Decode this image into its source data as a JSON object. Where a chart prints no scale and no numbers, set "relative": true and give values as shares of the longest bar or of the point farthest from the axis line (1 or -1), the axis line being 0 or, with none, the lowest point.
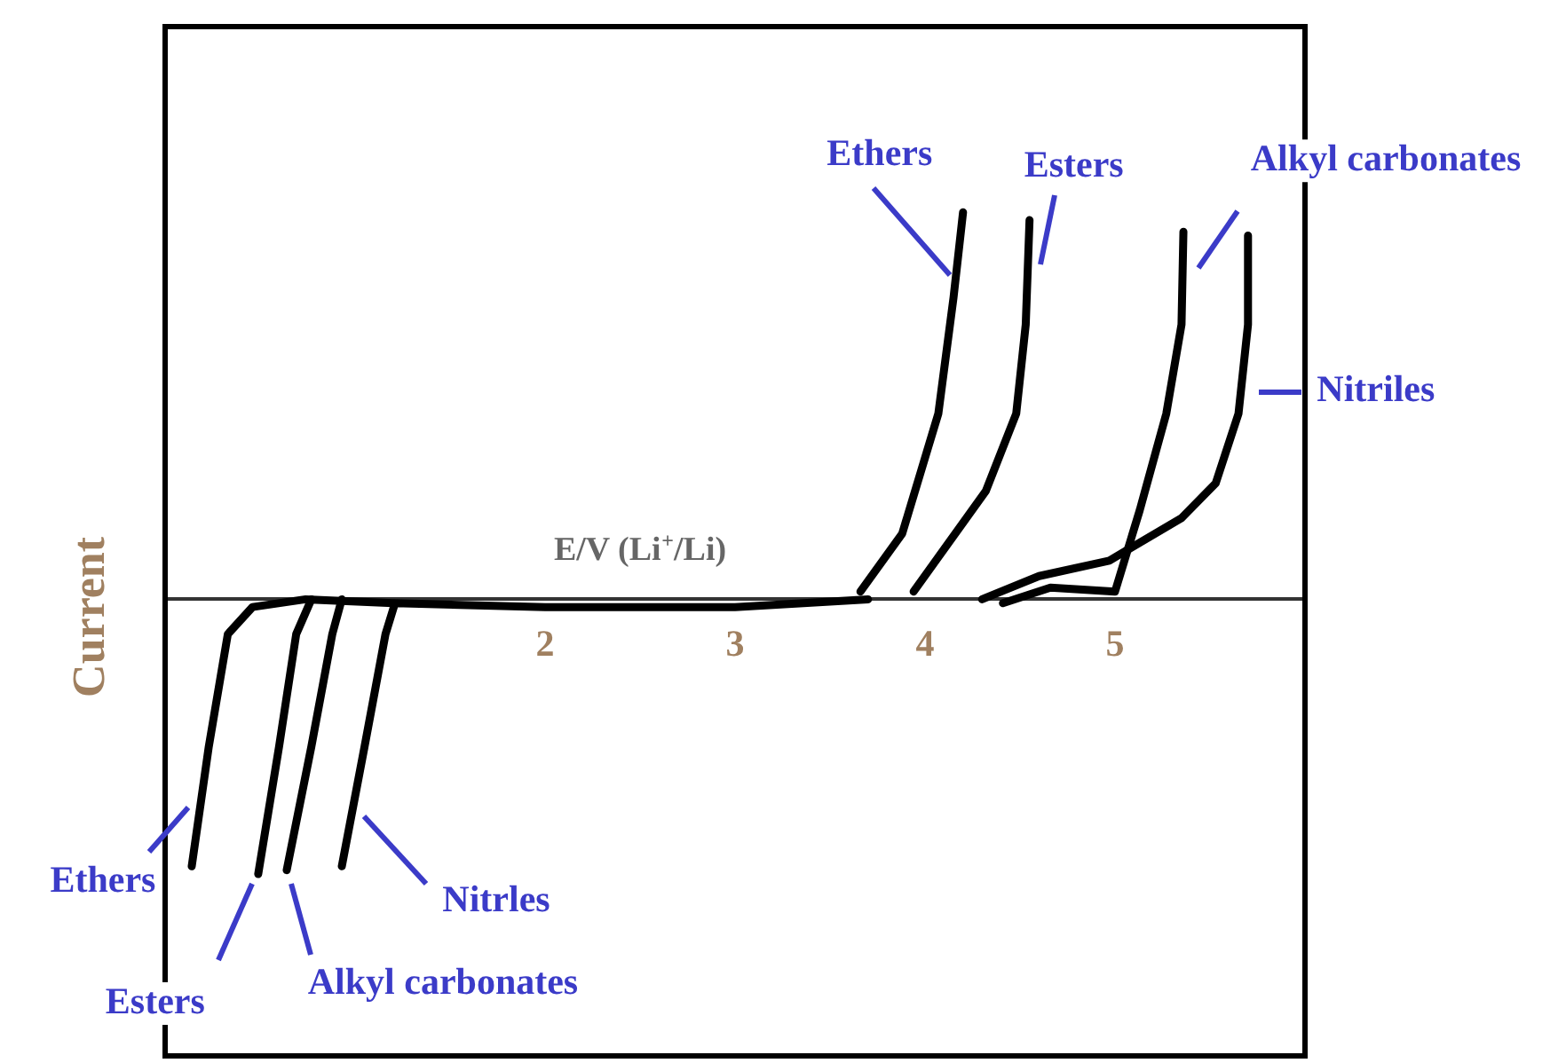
{
  "chart_data": {
    "type": "line",
    "relative": true,
    "xlabel": "E/V (Li$^{+}$/Li)",
    "ylabel": "Current",
    "xlim": [
      0,
      6
    ],
    "xticks": [
      2,
      3,
      4,
      5
    ],
    "grid": false,
    "legend": false,
    "marker": "none",
    "line_style": "solid",
    "series": [
      {
        "name": "Ethers",
        "color": "#000000",
        "x": [
          3.66,
          3.88,
          4.07,
          4.15,
          4.2
        ],
        "values": [
          0.02,
          0.17,
          0.48,
          0.78,
          1
        ]
      },
      {
        "name": "Esters",
        "color": "#000000",
        "x": [
          3.94,
          4.32,
          4.48,
          4.53,
          4.55
        ],
        "values": [
          0.02,
          0.28,
          0.48,
          0.71,
          0.98
        ]
      },
      {
        "name": "Alkyl carbonates",
        "color": "#000000",
        "x": [
          4.41,
          4.66,
          5,
          5.13,
          5.27,
          5.35,
          5.36
        ],
        "values": [
          -0.01,
          0.03,
          0.02,
          0.23,
          0.48,
          0.71,
          0.95
        ]
      },
      {
        "name": "Nitriles",
        "color": "#000000",
        "x": [
          4.3,
          4.6,
          4.97,
          5.35,
          5.53,
          5.65,
          5.7,
          5.7
        ],
        "values": [
          0,
          0.06,
          0.1,
          0.21,
          0.3,
          0.48,
          0.71,
          0.94
        ]
      },
      {
        "name": "Ethers",
        "color": "#000000",
        "x": [
          1.2,
          0.74,
          0.46,
          0.33,
          0.23,
          0.14
        ],
        "values": [
          -0.01,
          0,
          -0.02,
          -0.09,
          -0.38,
          -0.69
        ]
      },
      {
        "name": "Esters",
        "color": "#000000",
        "x": [
          0.77,
          0.69,
          0.6,
          0.49
        ],
        "values": [
          0,
          -0.09,
          -0.38,
          -0.71
        ]
      },
      {
        "name": "Alkyl carbonates",
        "color": "#000000",
        "x": [
          0.93,
          0.88,
          0.77,
          0.64
        ],
        "values": [
          0,
          -0.09,
          -0.38,
          -0.7
        ]
      },
      {
        "name": "Nitrles",
        "color": "#000000",
        "x": [
          3.7,
          3,
          2,
          1.21,
          1.16,
          1.05,
          0.93
        ],
        "values": [
          0,
          -0.02,
          -0.02,
          -0.01,
          -0.09,
          -0.38,
          -0.69
        ]
      }
    ]
  }
}
